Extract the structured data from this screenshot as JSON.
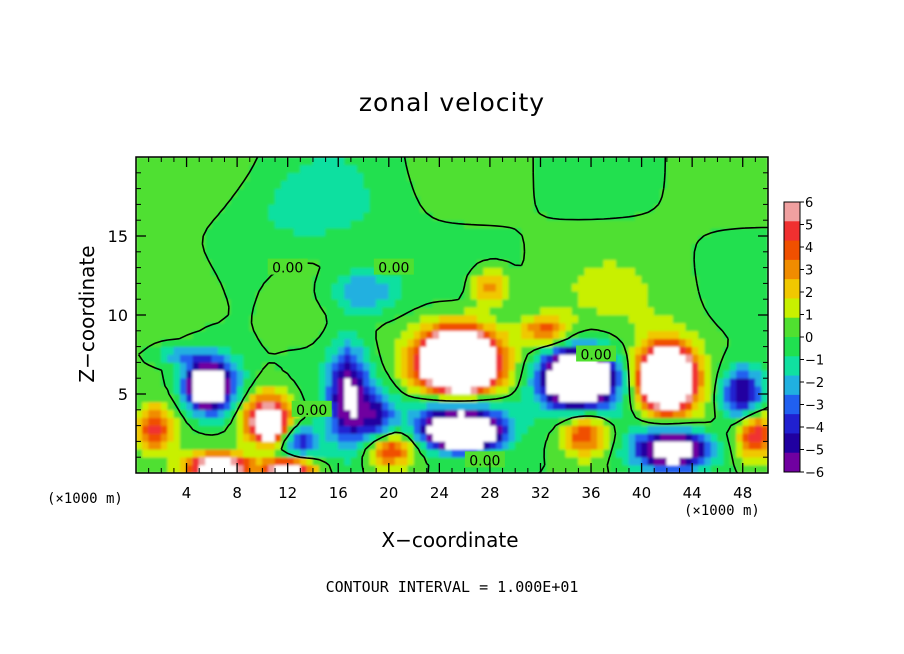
{
  "chart_data": {
    "type": "heatmap",
    "title": "zonal velocity",
    "xlabel": "X−coordinate",
    "ylabel": "Z−coordinate",
    "x_unit_label": "(×1000 m)",
    "x_ticks": [
      4,
      8,
      12,
      16,
      20,
      24,
      28,
      32,
      36,
      40,
      44,
      48
    ],
    "y_ticks": [
      5,
      10,
      15
    ],
    "xlim": [
      0,
      50
    ],
    "ylim": [
      0,
      20
    ],
    "colorbar": {
      "ticks": [
        "6",
        "5",
        "4",
        "3",
        "2",
        "1",
        "0",
        "−1",
        "−2",
        "−3",
        "−4",
        "−5",
        "−6"
      ],
      "range": [
        -6,
        6
      ],
      "colors": [
        "#f0a0a0",
        "#f03030",
        "#f05000",
        "#f08c00",
        "#f0c800",
        "#c8f000",
        "#50e030",
        "#20e050",
        "#10e0a0",
        "#20b0e0",
        "#2060f0",
        "#2020d0",
        "#2000a0",
        "#7000a0"
      ]
    },
    "contour_labels": [
      {
        "text": "0.00",
        "x": 12,
        "z": 13
      },
      {
        "text": "0.00",
        "x": 20.4,
        "z": 13
      },
      {
        "text": "0.00",
        "x": 13.9,
        "z": 4
      },
      {
        "text": "0.00",
        "x": 27.6,
        "z": 0.8
      },
      {
        "text": "0.00",
        "x": 36.4,
        "z": 7.5
      }
    ],
    "blobs": [
      {
        "x": 3.5,
        "z": 11.5,
        "rx": 5,
        "rz": 3.5,
        "v": 0.9
      },
      {
        "x": 14,
        "z": 16.5,
        "rx": 6,
        "rz": 3,
        "v": -1.2
      },
      {
        "x": 40,
        "z": 11,
        "rx": 8,
        "rz": 4,
        "v": 0.6
      },
      {
        "x": 18,
        "z": 11.5,
        "rx": 3,
        "rz": 1.5,
        "v": -3
      },
      {
        "x": 28,
        "z": 11.8,
        "rx": 1.5,
        "rz": 1.2,
        "v": 3.5
      },
      {
        "x": 32.5,
        "z": 9,
        "rx": 2,
        "rz": 1,
        "v": 4
      },
      {
        "x": 3.5,
        "z": 7.5,
        "rx": 2,
        "rz": 0.6,
        "v": -2.5
      },
      {
        "x": 6,
        "z": 5.5,
        "rx": 2.3,
        "rz": 2,
        "v": -7
      },
      {
        "x": 5.5,
        "z": 5.5,
        "rx": 1.2,
        "rz": 1,
        "v": -10
      },
      {
        "x": 1.5,
        "z": 2.8,
        "rx": 1.5,
        "rz": 1.5,
        "v": 4.5
      },
      {
        "x": 10.5,
        "z": 3.5,
        "rx": 2,
        "rz": 1.6,
        "v": 7
      },
      {
        "x": 10.5,
        "z": 3,
        "rx": 0.9,
        "rz": 0.7,
        "v": 12
      },
      {
        "x": 16.8,
        "z": 5,
        "rx": 1.6,
        "rz": 3.2,
        "v": -6
      },
      {
        "x": 19,
        "z": 3.5,
        "rx": 1.5,
        "rz": 2,
        "v": -4
      },
      {
        "x": 13,
        "z": 2,
        "rx": 1.5,
        "rz": 1,
        "v": -4
      },
      {
        "x": 25.5,
        "z": 7,
        "rx": 3.6,
        "rz": 2.4,
        "v": 9
      },
      {
        "x": 25.5,
        "z": 7,
        "rx": 2.2,
        "rz": 1.5,
        "v": 14
      },
      {
        "x": 25.5,
        "z": 3.5,
        "rx": 4,
        "rz": 1.8,
        "v": -6
      },
      {
        "x": 26,
        "z": 2.5,
        "rx": 2.6,
        "rz": 1,
        "v": -12
      },
      {
        "x": 35,
        "z": 6,
        "rx": 3.4,
        "rz": 2.2,
        "v": -7
      },
      {
        "x": 35,
        "z": 6,
        "rx": 2,
        "rz": 1.3,
        "v": -13
      },
      {
        "x": 35.5,
        "z": 2.5,
        "rx": 2,
        "rz": 1.5,
        "v": 5
      },
      {
        "x": 42,
        "z": 6,
        "rx": 2.5,
        "rz": 2.3,
        "v": 8
      },
      {
        "x": 42,
        "z": 6,
        "rx": 1.6,
        "rz": 1.5,
        "v": 13
      },
      {
        "x": 42.5,
        "z": 1.5,
        "rx": 3,
        "rz": 1.3,
        "v": -9
      },
      {
        "x": 48,
        "z": 5,
        "rx": 1.8,
        "rz": 1.8,
        "v": -6
      },
      {
        "x": 49,
        "z": 2.5,
        "rx": 1.5,
        "rz": 1.5,
        "v": 5
      },
      {
        "x": 6.5,
        "z": 0.4,
        "rx": 2.5,
        "rz": 0.8,
        "v": 9
      },
      {
        "x": 12,
        "z": 0.3,
        "rx": 2,
        "rz": 0.6,
        "v": 8
      },
      {
        "x": 20,
        "z": 1.5,
        "rx": 2,
        "rz": 1.2,
        "v": 5
      }
    ]
  }
}
